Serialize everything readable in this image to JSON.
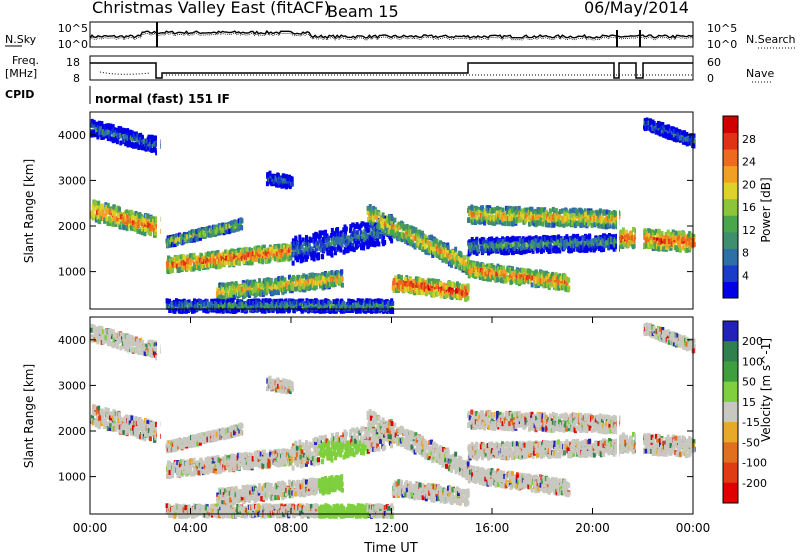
{
  "header": {
    "radar": "Christmas Valley East (fitACF)",
    "beam": "Beam 15",
    "date": "06/May/2014"
  },
  "chart_data": [
    {
      "type": "line",
      "name": "noise-panel",
      "left_label": "N.Sky",
      "right_label": "N.Search",
      "left_ticks": [
        "10^5",
        "10^0"
      ],
      "right_ticks": [
        "10^5",
        "10^0"
      ]
    },
    {
      "type": "line",
      "name": "frequency-panel",
      "left_label": [
        "Freq.",
        "[MHz]"
      ],
      "right_label": "Nave",
      "left_ticks": [
        "18",
        "8"
      ],
      "right_ticks": [
        "60",
        "0"
      ]
    },
    {
      "type": "text",
      "name": "cpid-panel",
      "left_label": "CPID",
      "text": "normal (fast) 151 IF"
    },
    {
      "type": "heatmap",
      "name": "power-panel",
      "ylabel": "Slant Range [km]",
      "y_ticks": [
        "1000",
        "2000",
        "3000",
        "4000"
      ],
      "colorbar": {
        "label": "Power [dB]",
        "ticks": [
          "4",
          "8",
          "12",
          "16",
          "20",
          "24",
          "28"
        ],
        "colors": [
          "#0000e6",
          "#1a3cc8",
          "#2f6fa8",
          "#3f8f6e",
          "#4aa64a",
          "#8cc43a",
          "#dcd22a",
          "#f2a024",
          "#ee6a1e",
          "#e03214",
          "#d00000"
        ]
      }
    },
    {
      "type": "heatmap",
      "name": "velocity-panel",
      "ylabel": "Slant Range [km]",
      "y_ticks": [
        "1000",
        "2000",
        "3000",
        "4000"
      ],
      "xlabel": "Time UT",
      "x_ticks": [
        "00:00",
        "04:00",
        "08:00",
        "12:00",
        "16:00",
        "20:00",
        "00:00"
      ],
      "colorbar": {
        "label": "Velocity [m s^-1]",
        "ticks": [
          "200",
          "100",
          "50",
          "15",
          "-15",
          "-50",
          "-100",
          "-200"
        ],
        "colors": [
          "#2222bb",
          "#2f7f4f",
          "#3f9f3f",
          "#7fcf3f",
          "#c8c8c0",
          "#e8a828",
          "#e07020",
          "#e03c14",
          "#e00000"
        ]
      }
    }
  ]
}
